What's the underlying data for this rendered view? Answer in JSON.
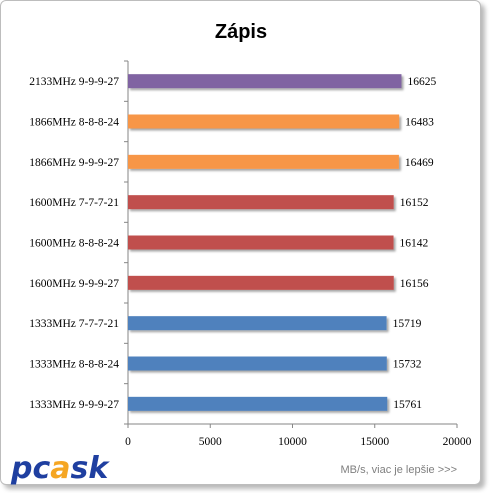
{
  "chart_data": {
    "type": "bar",
    "orientation": "horizontal",
    "title": "Zápis",
    "categories": [
      "2133MHz 9-9-9-27",
      "1866MHz 8-8-8-24",
      "1866MHz 9-9-9-27",
      "1600MHz 7-7-7-21",
      "1600MHz 8-8-8-24",
      "1600MHz 9-9-9-27",
      "1333MHz 7-7-7-21",
      "1333MHz 8-8-8-24",
      "1333MHz 9-9-9-27"
    ],
    "values": [
      16625,
      16483,
      16469,
      16152,
      16142,
      16156,
      15719,
      15732,
      15761
    ],
    "bar_colors": [
      "#8064a2",
      "#f79646",
      "#f79646",
      "#c0504d",
      "#c0504d",
      "#c0504d",
      "#4f81bd",
      "#4f81bd",
      "#4f81bd"
    ],
    "xlim": [
      0,
      20000
    ],
    "xticks": [
      0,
      5000,
      10000,
      15000,
      20000
    ],
    "xlabel": "",
    "ylabel": "",
    "grid": false,
    "legend": "none"
  },
  "note": "MB/s, viac je lepšie >>>",
  "logo": {
    "text": "pcask",
    "part1": "pc",
    "part2": "a",
    "part3": "sk",
    "color_main": "#1f3fa0",
    "color_accent": "#f5a623"
  }
}
